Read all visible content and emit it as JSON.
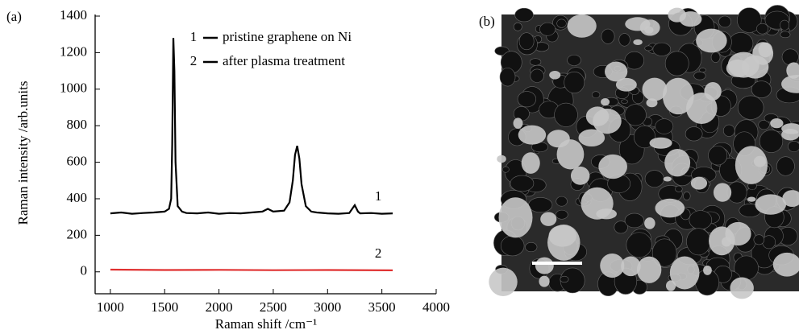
{
  "chart_data": {
    "type": "line",
    "panel_label": "(a)",
    "x_label": "Raman shift /cm⁻¹",
    "y_label": "Raman intensity /arb.units",
    "xlim": [
      860,
      4000
    ],
    "xticks": [
      1000,
      1500,
      2000,
      2500,
      3000,
      3500,
      4000
    ],
    "ylim": [
      -120,
      1400
    ],
    "yticks": [
      0,
      200,
      400,
      600,
      800,
      1000,
      1200,
      1400
    ],
    "grid": false,
    "legend": "upper center",
    "series": [
      {
        "name": "pristine graphene on Ni",
        "label": "1",
        "color": "#000000",
        "x": [
          1000,
          1100,
          1200,
          1300,
          1400,
          1500,
          1540,
          1560,
          1570,
          1580,
          1590,
          1600,
          1620,
          1660,
          1700,
          1800,
          1900,
          2000,
          2100,
          2200,
          2300,
          2400,
          2450,
          2500,
          2600,
          2650,
          2680,
          2700,
          2720,
          2740,
          2760,
          2800,
          2850,
          2900,
          3000,
          3100,
          3200,
          3250,
          3280,
          3300,
          3400,
          3500,
          3600
        ],
        "values": [
          320,
          325,
          318,
          322,
          325,
          330,
          345,
          400,
          700,
          1280,
          1100,
          600,
          360,
          330,
          322,
          320,
          325,
          318,
          322,
          320,
          325,
          330,
          345,
          330,
          335,
          380,
          500,
          640,
          690,
          620,
          480,
          360,
          330,
          325,
          320,
          318,
          322,
          365,
          330,
          320,
          322,
          318,
          320
        ]
      },
      {
        "name": "after plasma treatment",
        "label": "2",
        "color": "#e03030",
        "x": [
          1000,
          1500,
          2000,
          2500,
          3000,
          3600
        ],
        "values": [
          12,
          10,
          11,
          9,
          10,
          8
        ]
      }
    ]
  },
  "image_panel": {
    "panel_label": "(b)"
  }
}
